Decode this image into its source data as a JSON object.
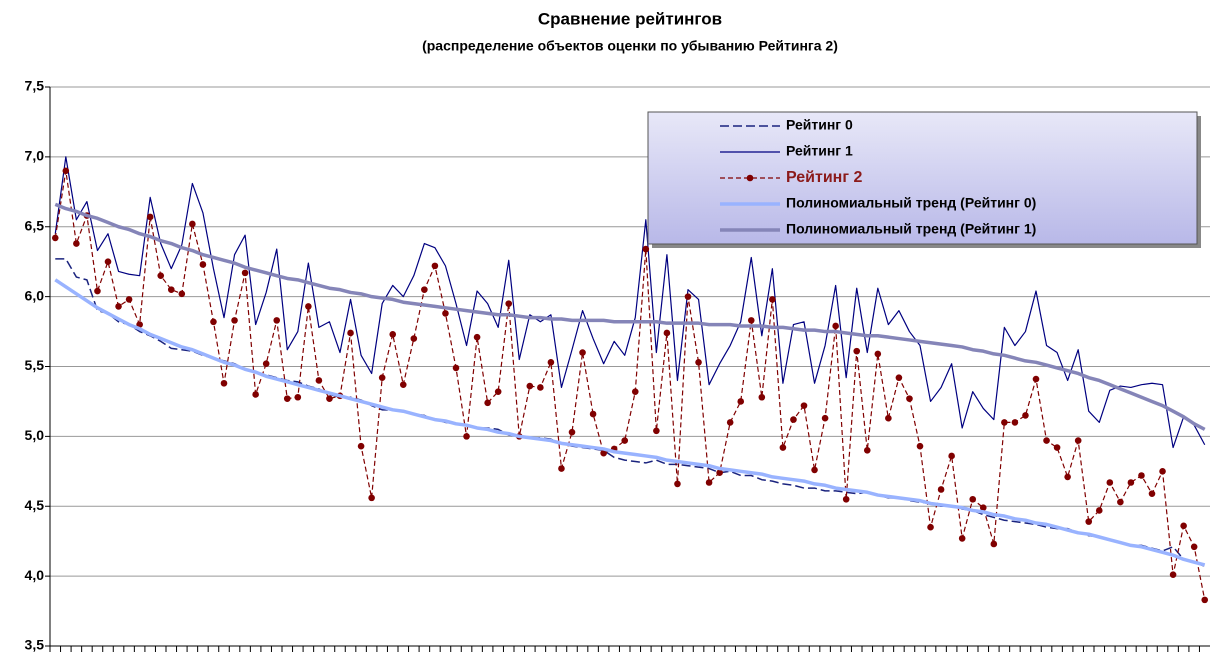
{
  "chart_data": {
    "type": "line",
    "title": "Сравнение рейтингов",
    "subtitle": "(распределение объектов оценки по убыванию Рейтинга 2)",
    "categories": [
      null,
      null,
      null,
      null,
      null,
      null,
      null,
      null,
      null,
      null,
      null,
      null,
      null,
      null,
      null,
      null,
      null,
      null,
      null,
      null,
      null,
      null,
      null,
      null,
      null,
      null,
      null,
      null,
      null,
      null,
      null,
      null,
      null,
      null,
      null,
      null,
      null,
      null,
      null,
      null,
      null,
      null,
      null,
      null,
      null,
      null,
      null,
      null,
      null,
      null,
      null,
      null,
      null,
      null,
      null,
      null,
      null,
      null,
      null,
      null,
      null,
      null,
      null,
      null,
      null,
      null,
      null,
      null,
      null,
      null,
      null,
      null,
      null,
      null,
      null,
      null,
      null,
      null,
      null,
      null,
      null,
      null,
      null,
      null,
      null,
      null,
      null,
      null,
      null,
      null,
      null,
      null,
      null,
      null,
      null,
      null,
      null,
      null,
      null,
      null,
      null,
      null,
      null,
      null,
      null,
      null,
      null,
      null,
      null,
      null
    ],
    "ylim": [
      3.5,
      7.5
    ],
    "yticks": [
      {
        "value": 3.5,
        "label": "3,5"
      },
      {
        "value": 4.0,
        "label": "4,0"
      },
      {
        "value": 4.5,
        "label": "4,5"
      },
      {
        "value": 5.0,
        "label": "5,0"
      },
      {
        "value": 5.5,
        "label": "5,5"
      },
      {
        "value": 6.0,
        "label": "6,0"
      },
      {
        "value": 6.5,
        "label": "6,5"
      },
      {
        "value": 7.0,
        "label": "7,0"
      },
      {
        "value": 7.5,
        "label": "7,5"
      }
    ],
    "grid": true,
    "legend": "top-right",
    "series": [
      {
        "name": "Рейтинг 0",
        "color": "#1a237e",
        "dash": true,
        "width": 1.5,
        "values": [
          6.27,
          6.27,
          6.14,
          6.12,
          5.9,
          5.88,
          5.82,
          5.8,
          5.75,
          5.72,
          5.68,
          5.63,
          5.62,
          5.61,
          5.58,
          5.56,
          5.54,
          5.52,
          5.48,
          5.46,
          5.44,
          5.42,
          5.4,
          5.39,
          5.36,
          5.34,
          5.3,
          5.28,
          5.28,
          5.26,
          5.22,
          5.19,
          5.19,
          5.18,
          5.16,
          5.15,
          5.12,
          5.1,
          5.09,
          5.08,
          5.06,
          5.06,
          5.05,
          5.01,
          5.0,
          4.99,
          4.99,
          4.98,
          4.95,
          4.93,
          4.92,
          4.91,
          4.9,
          4.85,
          4.83,
          4.82,
          4.81,
          4.83,
          4.8,
          4.8,
          4.79,
          4.78,
          4.77,
          4.74,
          4.75,
          4.72,
          4.72,
          4.69,
          4.68,
          4.66,
          4.65,
          4.63,
          4.63,
          4.61,
          4.61,
          4.6,
          4.59,
          4.6,
          4.58,
          4.56,
          4.56,
          4.54,
          4.53,
          4.52,
          4.5,
          4.5,
          4.48,
          4.47,
          4.44,
          4.42,
          4.4,
          4.39,
          4.38,
          4.37,
          4.35,
          4.34,
          4.34,
          4.31,
          4.29,
          4.28,
          4.26,
          4.24,
          4.22,
          4.22,
          4.2,
          4.18,
          4.21,
          4.12,
          4.1,
          4.07
        ]
      },
      {
        "name": "Рейтинг 1",
        "color": "#000080",
        "width": 1.2,
        "values": [
          6.45,
          7.0,
          6.55,
          6.68,
          6.33,
          6.45,
          6.18,
          6.16,
          6.15,
          6.71,
          6.38,
          6.2,
          6.37,
          6.81,
          6.6,
          6.2,
          5.85,
          6.3,
          6.44,
          5.8,
          6.03,
          6.34,
          5.62,
          5.75,
          6.24,
          5.78,
          5.82,
          5.6,
          5.98,
          5.58,
          5.45,
          5.95,
          6.08,
          6.0,
          6.15,
          6.38,
          6.35,
          6.22,
          5.95,
          5.65,
          6.04,
          5.95,
          5.78,
          6.26,
          5.55,
          5.87,
          5.82,
          5.87,
          5.35,
          5.62,
          5.9,
          5.7,
          5.52,
          5.68,
          5.58,
          5.85,
          6.55,
          5.6,
          6.3,
          5.4,
          6.05,
          5.98,
          5.37,
          5.52,
          5.65,
          5.82,
          6.28,
          5.72,
          6.2,
          5.38,
          5.8,
          5.82,
          5.38,
          5.65,
          6.08,
          5.42,
          6.06,
          5.6,
          6.06,
          5.8,
          5.9,
          5.75,
          5.65,
          5.25,
          5.35,
          5.52,
          5.06,
          5.32,
          5.2,
          5.12,
          5.78,
          5.65,
          5.75,
          6.04,
          5.65,
          5.6,
          5.4,
          5.62,
          5.18,
          5.1,
          5.33,
          5.36,
          5.35,
          5.37,
          5.38,
          5.37,
          4.92,
          5.14,
          5.08,
          4.94
        ]
      },
      {
        "name": "Рейтинг 2",
        "color": "#800000",
        "dash": true,
        "marker": "circle",
        "width": 1.2,
        "legend_color": "#8b1a1a",
        "values": [
          6.42,
          6.9,
          6.38,
          6.58,
          6.04,
          6.25,
          5.93,
          5.98,
          5.8,
          6.57,
          6.15,
          6.05,
          6.02,
          6.52,
          6.23,
          5.82,
          5.38,
          5.83,
          6.17,
          5.3,
          5.52,
          5.83,
          5.27,
          5.28,
          5.93,
          5.4,
          5.27,
          5.29,
          5.74,
          4.93,
          4.56,
          5.42,
          5.73,
          5.37,
          5.7,
          6.05,
          6.22,
          5.88,
          5.49,
          5.0,
          5.71,
          5.24,
          5.32,
          5.95,
          5.0,
          5.36,
          5.35,
          5.53,
          4.77,
          5.03,
          5.6,
          5.16,
          4.88,
          4.91,
          4.97,
          5.32,
          6.34,
          5.04,
          5.74,
          4.66,
          6.0,
          5.53,
          4.67,
          4.74,
          5.1,
          5.25,
          5.83,
          5.28,
          5.98,
          4.92,
          5.12,
          5.22,
          4.76,
          5.13,
          5.79,
          4.55,
          5.61,
          4.9,
          5.59,
          5.13,
          5.42,
          5.27,
          4.93,
          4.35,
          4.62,
          4.86,
          4.27,
          4.55,
          4.49,
          4.23,
          5.1,
          5.1,
          5.15,
          5.41,
          4.97,
          4.92,
          4.71,
          4.97,
          4.39,
          4.47,
          4.67,
          4.53,
          4.67,
          4.72,
          4.59,
          4.75,
          4.01,
          4.36,
          4.21,
          3.83
        ]
      },
      {
        "name": "Полиномиальный тренд (Рейтинг 0)",
        "color": "#99b3ff",
        "width": 3.5,
        "values": [
          6.12,
          6.07,
          6.02,
          5.97,
          5.92,
          5.88,
          5.84,
          5.8,
          5.77,
          5.73,
          5.7,
          5.67,
          5.64,
          5.62,
          5.59,
          5.56,
          5.53,
          5.51,
          5.48,
          5.46,
          5.43,
          5.41,
          5.39,
          5.37,
          5.35,
          5.33,
          5.31,
          5.29,
          5.27,
          5.25,
          5.23,
          5.21,
          5.19,
          5.18,
          5.16,
          5.14,
          5.12,
          5.11,
          5.09,
          5.08,
          5.06,
          5.05,
          5.03,
          5.02,
          5.0,
          4.99,
          4.98,
          4.97,
          4.95,
          4.94,
          4.93,
          4.92,
          4.91,
          4.89,
          4.88,
          4.87,
          4.86,
          4.85,
          4.83,
          4.82,
          4.81,
          4.8,
          4.79,
          4.77,
          4.76,
          4.75,
          4.74,
          4.73,
          4.71,
          4.7,
          4.69,
          4.68,
          4.66,
          4.65,
          4.63,
          4.62,
          4.61,
          4.6,
          4.58,
          4.57,
          4.56,
          4.55,
          4.54,
          4.52,
          4.51,
          4.5,
          4.49,
          4.47,
          4.46,
          4.44,
          4.43,
          4.41,
          4.4,
          4.38,
          4.37,
          4.35,
          4.33,
          4.31,
          4.3,
          4.28,
          4.26,
          4.24,
          4.22,
          4.21,
          4.19,
          4.17,
          4.15,
          4.12,
          4.1,
          4.08
        ]
      },
      {
        "name": "Полиномиальный тренд (Рейтинг 1)",
        "color": "#8585b8",
        "width": 3.5,
        "values": [
          6.66,
          6.63,
          6.61,
          6.58,
          6.56,
          6.53,
          6.5,
          6.48,
          6.45,
          6.43,
          6.4,
          6.38,
          6.35,
          6.33,
          6.3,
          6.28,
          6.26,
          6.24,
          6.21,
          6.19,
          6.17,
          6.15,
          6.13,
          6.12,
          6.1,
          6.08,
          6.06,
          6.05,
          6.03,
          6.02,
          6.0,
          5.99,
          5.98,
          5.96,
          5.95,
          5.94,
          5.93,
          5.92,
          5.91,
          5.9,
          5.89,
          5.88,
          5.87,
          5.87,
          5.86,
          5.85,
          5.85,
          5.84,
          5.84,
          5.83,
          5.83,
          5.83,
          5.83,
          5.82,
          5.82,
          5.82,
          5.82,
          5.82,
          5.81,
          5.81,
          5.81,
          5.81,
          5.8,
          5.8,
          5.8,
          5.79,
          5.79,
          5.79,
          5.78,
          5.78,
          5.77,
          5.76,
          5.76,
          5.75,
          5.75,
          5.74,
          5.73,
          5.72,
          5.72,
          5.71,
          5.7,
          5.69,
          5.68,
          5.67,
          5.66,
          5.65,
          5.64,
          5.62,
          5.61,
          5.59,
          5.58,
          5.56,
          5.54,
          5.53,
          5.51,
          5.49,
          5.47,
          5.45,
          5.42,
          5.4,
          5.37,
          5.34,
          5.31,
          5.28,
          5.25,
          5.22,
          5.18,
          5.14,
          5.09,
          5.05
        ]
      }
    ]
  }
}
